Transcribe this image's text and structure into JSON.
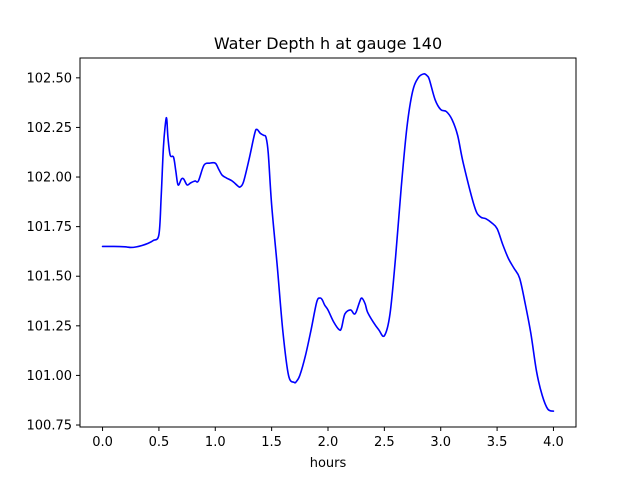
{
  "chart_data": {
    "type": "line",
    "title": "Water Depth h at gauge 140",
    "xlabel": "hours",
    "ylabel": "",
    "xlim": [
      -0.2,
      4.2
    ],
    "ylim": [
      100.74,
      102.6
    ],
    "xticks": [
      0.0,
      0.5,
      1.0,
      1.5,
      2.0,
      2.5,
      3.0,
      3.5,
      4.0
    ],
    "xtick_labels": [
      "0.0",
      "0.5",
      "1.0",
      "1.5",
      "2.0",
      "2.5",
      "3.0",
      "3.5",
      "4.0"
    ],
    "yticks": [
      100.75,
      101.0,
      101.25,
      101.5,
      101.75,
      102.0,
      102.25,
      102.5
    ],
    "ytick_labels": [
      "100.75",
      "101.00",
      "101.25",
      "101.50",
      "101.75",
      "102.00",
      "102.25",
      "102.50"
    ],
    "grid": false,
    "series": [
      {
        "name": "h",
        "color": "#0000ff",
        "x": [
          0.0,
          0.1,
          0.2,
          0.25,
          0.3,
          0.35,
          0.4,
          0.45,
          0.5,
          0.52,
          0.54,
          0.56,
          0.57,
          0.58,
          0.6,
          0.63,
          0.65,
          0.67,
          0.7,
          0.72,
          0.75,
          0.78,
          0.82,
          0.85,
          0.9,
          0.95,
          1.0,
          1.03,
          1.06,
          1.1,
          1.15,
          1.2,
          1.22,
          1.25,
          1.3,
          1.35,
          1.37,
          1.4,
          1.43,
          1.45,
          1.47,
          1.5,
          1.55,
          1.6,
          1.65,
          1.7,
          1.72,
          1.75,
          1.8,
          1.85,
          1.9,
          1.93,
          1.95,
          1.97,
          2.0,
          2.05,
          2.1,
          2.12,
          2.15,
          2.2,
          2.23,
          2.25,
          2.28,
          2.3,
          2.33,
          2.35,
          2.4,
          2.45,
          2.5,
          2.55,
          2.6,
          2.65,
          2.7,
          2.75,
          2.8,
          2.85,
          2.88,
          2.9,
          2.95,
          3.0,
          3.05,
          3.1,
          3.15,
          3.2,
          3.3,
          3.35,
          3.4,
          3.45,
          3.5,
          3.55,
          3.6,
          3.65,
          3.7,
          3.75,
          3.8,
          3.85,
          3.9,
          3.95,
          4.0
        ],
        "values": [
          101.65,
          101.65,
          101.648,
          101.645,
          101.648,
          101.655,
          101.665,
          101.68,
          101.71,
          101.9,
          102.15,
          102.28,
          102.29,
          102.2,
          102.11,
          102.1,
          102.03,
          101.96,
          101.99,
          101.99,
          101.96,
          101.97,
          101.98,
          101.98,
          102.06,
          102.07,
          102.07,
          102.04,
          102.01,
          101.995,
          101.98,
          101.955,
          101.95,
          101.975,
          102.09,
          102.22,
          102.24,
          102.22,
          102.21,
          102.2,
          102.12,
          101.86,
          101.55,
          101.22,
          101.0,
          100.965,
          100.97,
          101.0,
          101.1,
          101.23,
          101.37,
          101.39,
          101.38,
          101.355,
          101.33,
          101.27,
          101.23,
          101.24,
          101.31,
          101.33,
          101.31,
          101.32,
          101.37,
          101.39,
          101.36,
          101.32,
          101.27,
          101.23,
          101.2,
          101.31,
          101.6,
          101.95,
          102.25,
          102.43,
          102.5,
          102.52,
          102.51,
          102.49,
          102.39,
          102.34,
          102.33,
          102.29,
          102.21,
          102.07,
          101.85,
          101.8,
          101.79,
          101.77,
          101.74,
          101.66,
          101.59,
          101.54,
          101.49,
          101.36,
          101.21,
          101.02,
          100.9,
          100.83,
          100.82
        ]
      }
    ]
  }
}
